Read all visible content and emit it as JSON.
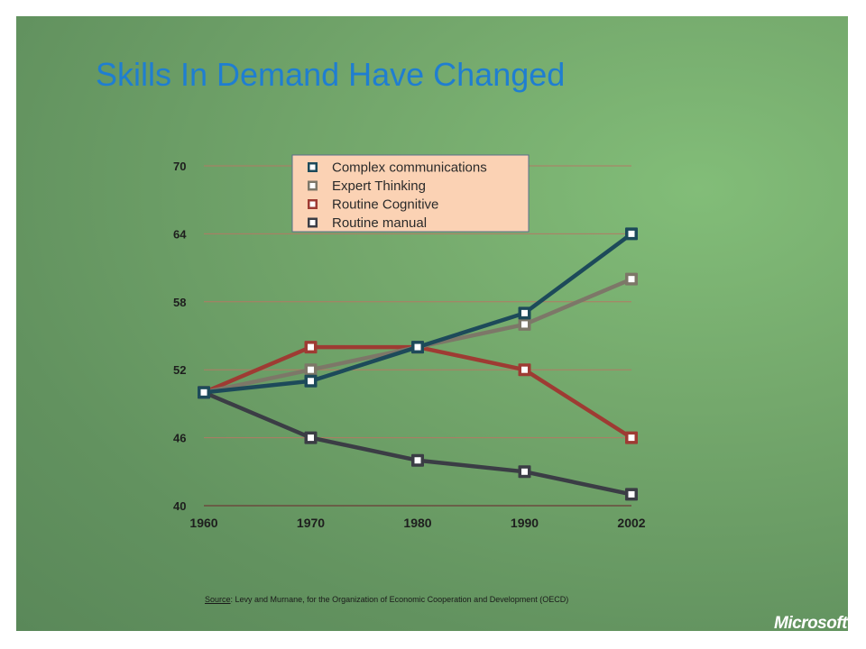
{
  "slide": {
    "title": "Skills In Demand Have Changed",
    "source_label": "Source",
    "source_text": ": Levy and Murnane, for the Organization of Economic Cooperation and Development (OECD)",
    "logo_text": "Microsoft",
    "logo_mark": "®"
  },
  "chart_data": {
    "type": "line",
    "title": "",
    "xlabel": "",
    "ylabel": "",
    "x": [
      "1960",
      "1970",
      "1980",
      "1990",
      "2002"
    ],
    "yticks": [
      "70",
      "64",
      "58",
      "52",
      "46",
      "40"
    ],
    "ylim": [
      40,
      70
    ],
    "grid": true,
    "legend_position": "top-center",
    "series": [
      {
        "name": "Complex communications",
        "color": "#1d4a5a",
        "values": [
          50,
          51,
          54,
          57,
          64
        ]
      },
      {
        "name": "Expert Thinking",
        "color": "#7d7768",
        "values": [
          50,
          52,
          54,
          56,
          60
        ]
      },
      {
        "name": "Routine Cognitive",
        "color": "#9e3b33",
        "values": [
          50,
          54,
          54,
          52,
          46
        ]
      },
      {
        "name": "Routine manual",
        "color": "#3b3d45",
        "values": [
          50,
          46,
          44,
          43,
          41
        ]
      }
    ]
  }
}
